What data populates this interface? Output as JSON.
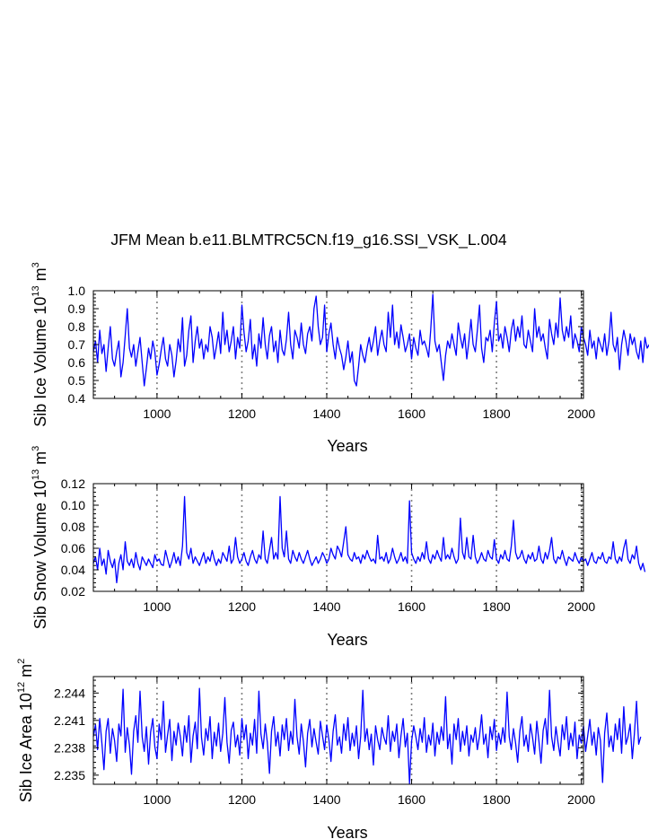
{
  "title": "JFM Mean b.e11.BLMTRC5CN.f19_g16.SSI_VSK_L.004",
  "line_color": "#0000ff",
  "ref_line_color": "#808080",
  "chart_data": [
    {
      "type": "line",
      "id": "ice_volume",
      "ylabel_main": "Sib Ice Volume 10",
      "ylabel_sup1": "13",
      "ylabel_unit": " m",
      "ylabel_sup2": "3",
      "xlabel": "Years",
      "xlim": [
        850,
        2005
      ],
      "ylim": [
        0.4,
        1.0
      ],
      "xticks": [
        1000,
        1200,
        1400,
        1600,
        1800,
        2000
      ],
      "xtick_labels": [
        "1000",
        "1200",
        "1400",
        "1600",
        "1800",
        "2000"
      ],
      "yticks": [
        0.4,
        0.5,
        0.6,
        0.7,
        0.8,
        0.9,
        1.0
      ],
      "ytick_labels": [
        "0.4",
        "0.5",
        "0.6",
        "0.7",
        "0.8",
        "0.9",
        "1.0"
      ],
      "ref_lines": [
        1000,
        1200,
        1400,
        1600,
        1800,
        2000
      ],
      "series_step": 5,
      "series": [
        0.66,
        0.72,
        0.6,
        0.78,
        0.65,
        0.7,
        0.55,
        0.68,
        0.8,
        0.62,
        0.58,
        0.66,
        0.72,
        0.52,
        0.6,
        0.75,
        0.9,
        0.68,
        0.63,
        0.7,
        0.58,
        0.66,
        0.74,
        0.6,
        0.47,
        0.57,
        0.68,
        0.62,
        0.72,
        0.66,
        0.53,
        0.59,
        0.67,
        0.74,
        0.62,
        0.58,
        0.7,
        0.64,
        0.52,
        0.61,
        0.73,
        0.66,
        0.85,
        0.58,
        0.64,
        0.78,
        0.86,
        0.6,
        0.72,
        0.8,
        0.68,
        0.73,
        0.62,
        0.7,
        0.66,
        0.8,
        0.74,
        0.62,
        0.69,
        0.77,
        0.65,
        0.88,
        0.7,
        0.78,
        0.66,
        0.72,
        0.8,
        0.62,
        0.74,
        0.68,
        0.92,
        0.77,
        0.66,
        0.72,
        0.84,
        0.62,
        0.7,
        0.58,
        0.76,
        0.68,
        0.85,
        0.7,
        0.62,
        0.75,
        0.8,
        0.66,
        0.72,
        0.6,
        0.78,
        0.67,
        0.64,
        0.73,
        0.88,
        0.7,
        0.62,
        0.78,
        0.74,
        0.68,
        0.82,
        0.7,
        0.65,
        0.76,
        0.8,
        0.72,
        0.9,
        0.97,
        0.8,
        0.7,
        0.74,
        0.92,
        0.66,
        0.76,
        0.82,
        0.7,
        0.62,
        0.74,
        0.68,
        0.64,
        0.56,
        0.63,
        0.72,
        0.6,
        0.66,
        0.5,
        0.47,
        0.58,
        0.7,
        0.64,
        0.6,
        0.68,
        0.74,
        0.66,
        0.72,
        0.8,
        0.64,
        0.72,
        0.78,
        0.7,
        0.66,
        0.88,
        0.74,
        0.92,
        0.7,
        0.77,
        0.68,
        0.81,
        0.74,
        0.66,
        0.7,
        0.76,
        0.62,
        0.74,
        0.68,
        0.64,
        0.78,
        0.7,
        0.72,
        0.68,
        0.63,
        0.78,
        0.98,
        0.72,
        0.66,
        0.7,
        0.6,
        0.5,
        0.64,
        0.72,
        0.68,
        0.76,
        0.7,
        0.64,
        0.82,
        0.74,
        0.68,
        0.76,
        0.62,
        0.72,
        0.84,
        0.7,
        0.66,
        0.78,
        0.92,
        0.68,
        0.6,
        0.74,
        0.72,
        0.78,
        0.66,
        0.82,
        0.94,
        0.72,
        0.76,
        0.68,
        0.8,
        0.74,
        0.66,
        0.78,
        0.84,
        0.72,
        0.8,
        0.74,
        0.86,
        0.7,
        0.68,
        0.78,
        0.72,
        0.66,
        0.9,
        0.74,
        0.8,
        0.72,
        0.76,
        0.68,
        0.62,
        0.84,
        0.76,
        0.7,
        0.82,
        0.74,
        0.96,
        0.78,
        0.72,
        0.8,
        0.74,
        0.86,
        0.68,
        0.76,
        0.72,
        0.66,
        0.8,
        0.74,
        0.7,
        0.64,
        0.78,
        0.68,
        0.72,
        0.62,
        0.74,
        0.7,
        0.66,
        0.76,
        0.64,
        0.72,
        0.88,
        0.7,
        0.66,
        0.74,
        0.56,
        0.7,
        0.78,
        0.72,
        0.64,
        0.76,
        0.7,
        0.74,
        0.66,
        0.62,
        0.72,
        0.6,
        0.74,
        0.68,
        0.7,
        0.6,
        0.66,
        0.74,
        0.62,
        0.58
      ]
    },
    {
      "type": "line",
      "id": "snow_volume",
      "ylabel_main": "Sib Snow Volume 10",
      "ylabel_sup1": "13",
      "ylabel_unit": " m",
      "ylabel_sup2": "3",
      "xlabel": "Years",
      "xlim": [
        850,
        2005
      ],
      "ylim": [
        0.02,
        0.12
      ],
      "xticks": [
        1000,
        1200,
        1400,
        1600,
        1800,
        2000
      ],
      "xtick_labels": [
        "1000",
        "1200",
        "1400",
        "1600",
        "1800",
        "2000"
      ],
      "yticks": [
        0.02,
        0.04,
        0.06,
        0.08,
        0.1,
        0.12
      ],
      "ytick_labels": [
        "0.02",
        "0.04",
        "0.06",
        "0.08",
        "0.10",
        "0.12"
      ],
      "ref_lines": [
        1000,
        1200,
        1400,
        1600,
        1800,
        2000
      ],
      "series_step": 5,
      "series": [
        0.046,
        0.052,
        0.04,
        0.06,
        0.044,
        0.05,
        0.036,
        0.058,
        0.048,
        0.042,
        0.05,
        0.028,
        0.046,
        0.054,
        0.04,
        0.066,
        0.048,
        0.044,
        0.05,
        0.042,
        0.056,
        0.046,
        0.04,
        0.052,
        0.048,
        0.044,
        0.05,
        0.046,
        0.042,
        0.054,
        0.048,
        0.05,
        0.045,
        0.044,
        0.058,
        0.05,
        0.042,
        0.048,
        0.056,
        0.046,
        0.052,
        0.044,
        0.062,
        0.108,
        0.056,
        0.05,
        0.06,
        0.046,
        0.052,
        0.048,
        0.044,
        0.05,
        0.056,
        0.046,
        0.052,
        0.048,
        0.058,
        0.05,
        0.044,
        0.05,
        0.046,
        0.056,
        0.052,
        0.048,
        0.062,
        0.046,
        0.05,
        0.07,
        0.052,
        0.046,
        0.05,
        0.056,
        0.048,
        0.044,
        0.052,
        0.058,
        0.05,
        0.046,
        0.054,
        0.05,
        0.076,
        0.05,
        0.046,
        0.058,
        0.07,
        0.05,
        0.056,
        0.05,
        0.108,
        0.06,
        0.052,
        0.076,
        0.05,
        0.046,
        0.058,
        0.052,
        0.048,
        0.056,
        0.05,
        0.046,
        0.052,
        0.058,
        0.05,
        0.044,
        0.048,
        0.052,
        0.046,
        0.05,
        0.056,
        0.052,
        0.046,
        0.05,
        0.06,
        0.054,
        0.05,
        0.062,
        0.058,
        0.052,
        0.066,
        0.08,
        0.054,
        0.05,
        0.048,
        0.056,
        0.05,
        0.052,
        0.046,
        0.054,
        0.05,
        0.058,
        0.052,
        0.048,
        0.05,
        0.046,
        0.072,
        0.05,
        0.052,
        0.048,
        0.056,
        0.046,
        0.05,
        0.06,
        0.052,
        0.046,
        0.05,
        0.056,
        0.048,
        0.052,
        0.046,
        0.104,
        0.056,
        0.05,
        0.046,
        0.052,
        0.048,
        0.056,
        0.05,
        0.066,
        0.05,
        0.046,
        0.054,
        0.05,
        0.058,
        0.052,
        0.048,
        0.07,
        0.05,
        0.054,
        0.05,
        0.06,
        0.052,
        0.046,
        0.05,
        0.088,
        0.056,
        0.05,
        0.07,
        0.052,
        0.05,
        0.072,
        0.052,
        0.046,
        0.05,
        0.056,
        0.05,
        0.048,
        0.058,
        0.052,
        0.05,
        0.068,
        0.05,
        0.046,
        0.054,
        0.05,
        0.058,
        0.05,
        0.048,
        0.062,
        0.086,
        0.056,
        0.05,
        0.052,
        0.058,
        0.05,
        0.046,
        0.054,
        0.05,
        0.056,
        0.048,
        0.05,
        0.062,
        0.05,
        0.046,
        0.056,
        0.05,
        0.058,
        0.07,
        0.05,
        0.046,
        0.052,
        0.05,
        0.058,
        0.05,
        0.044,
        0.052,
        0.05,
        0.048,
        0.056,
        0.05,
        0.046,
        0.052,
        0.048,
        0.05,
        0.044,
        0.05,
        0.056,
        0.048,
        0.046,
        0.052,
        0.05,
        0.056,
        0.048,
        0.046,
        0.052,
        0.05,
        0.066,
        0.05,
        0.046,
        0.052,
        0.048,
        0.06,
        0.068,
        0.05,
        0.046,
        0.054,
        0.05,
        0.062,
        0.046,
        0.04,
        0.046,
        0.038
      ]
    },
    {
      "type": "line",
      "id": "ice_area",
      "ylabel_main": "Sib Ice Area 10",
      "ylabel_sup1": "12",
      "ylabel_unit": " m",
      "ylabel_sup2": "2",
      "xlabel": "Years",
      "xlim": [
        850,
        2005
      ],
      "ylim": [
        2.234,
        2.2458
      ],
      "xticks": [
        1000,
        1200,
        1400,
        1600,
        1800,
        2000
      ],
      "xtick_labels": [
        "1000",
        "1200",
        "1400",
        "1600",
        "1800",
        "2000"
      ],
      "yticks": [
        2.235,
        2.238,
        2.241,
        2.244
      ],
      "ytick_labels": [
        "2.235",
        "2.238",
        "2.241",
        "2.244"
      ],
      "ref_lines": [
        1000,
        1200,
        1400,
        1600,
        1800,
        2000
      ],
      "series_step": 5,
      "series": [
        2.2392,
        2.2405,
        2.2378,
        2.2412,
        2.2385,
        2.2356,
        2.2398,
        2.2412,
        2.2374,
        2.2401,
        2.2388,
        2.2365,
        2.2406,
        2.2393,
        2.2444,
        2.2375,
        2.2402,
        2.2383,
        2.2351,
        2.2398,
        2.2415,
        2.2386,
        2.2442,
        2.2392,
        2.2376,
        2.2403,
        2.2362,
        2.2397,
        2.2412,
        2.2381,
        2.2368,
        2.2406,
        2.2389,
        2.2431,
        2.2375,
        2.2394,
        2.2411,
        2.2366,
        2.2398,
        2.2383,
        2.2407,
        2.2392,
        2.2371,
        2.2404,
        2.2386,
        2.2415,
        2.2364,
        2.2393,
        2.2408,
        2.2379,
        2.2445,
        2.2391,
        2.2372,
        2.2401,
        2.2388,
        2.2414,
        2.2368,
        2.2397,
        2.2382,
        2.2407,
        2.2376,
        2.2396,
        2.2435,
        2.2386,
        2.2363,
        2.2399,
        2.2408,
        2.2381,
        2.2394,
        2.2372,
        2.2412,
        2.2389,
        2.2405,
        2.2368,
        2.2396,
        2.2383,
        2.2411,
        2.2374,
        2.2442,
        2.2395,
        2.2379,
        2.2406,
        2.2386,
        2.2352,
        2.2398,
        2.2414,
        2.2382,
        2.2397,
        2.2371,
        2.2405,
        2.2389,
        2.2412,
        2.2377,
        2.2398,
        2.2384,
        2.2433,
        2.2392,
        2.2373,
        2.2406,
        2.2387,
        2.2359,
        2.2396,
        2.2411,
        2.2381,
        2.2401,
        2.2386,
        2.2373,
        2.2409,
        2.2393,
        2.2378,
        2.2405,
        2.2389,
        2.2365,
        2.2398,
        2.2416,
        2.2383,
        2.2392,
        2.2374,
        2.2406,
        2.2388,
        2.2413,
        2.2377,
        2.2396,
        2.2382,
        2.2404,
        2.2368,
        2.2392,
        2.2443,
        2.2387,
        2.2401,
        2.2378,
        2.2395,
        2.2361,
        2.2404,
        2.2389,
        2.2378,
        2.2402,
        2.2391,
        2.2384,
        2.2415,
        2.2376,
        2.2398,
        2.2387,
        2.2406,
        2.2369,
        2.2393,
        2.2412,
        2.2381,
        2.2396,
        2.2341,
        2.2387,
        2.2404,
        2.2392,
        2.2378,
        2.2401,
        2.2386,
        2.2413,
        2.2375,
        2.2394,
        2.2383,
        2.2407,
        2.2371,
        2.2397,
        2.2384,
        2.2403,
        2.2388,
        2.2436,
        2.2379,
        2.2395,
        2.2362,
        2.2406,
        2.2389,
        2.2412,
        2.2376,
        2.2398,
        2.2383,
        2.2404,
        2.2371,
        2.2394,
        2.2386,
        2.2402,
        2.2378,
        2.2393,
        2.2416,
        2.2384,
        2.2395,
        2.2369,
        2.2403,
        2.2389,
        2.2411,
        2.2377,
        2.2396,
        2.2384,
        2.2402,
        2.2386,
        2.2441,
        2.2392,
        2.2378,
        2.2401,
        2.2385,
        2.2364,
        2.2398,
        2.2414,
        2.2382,
        2.2394,
        2.2376,
        2.2406,
        2.2391,
        2.2373,
        2.2409,
        2.2387,
        2.2363,
        2.2399,
        2.2412,
        2.2384,
        2.2443,
        2.2392,
        2.2377,
        2.2403,
        2.2386,
        2.2371,
        2.2405,
        2.2389,
        2.2414,
        2.2378,
        2.2396,
        2.2382,
        2.2408,
        2.2368,
        2.2394,
        2.2385,
        2.2404,
        2.2376,
        2.2393,
        2.2411,
        2.2383,
        2.2397,
        2.2372,
        2.2402,
        2.2388,
        2.2342,
        2.2396,
        2.2418,
        2.2381,
        2.2393,
        2.2376,
        2.2406,
        2.2389,
        2.2412,
        2.2374,
        2.2425,
        2.2384,
        2.2392,
        2.2406,
        2.2368,
        2.2395,
        2.2431,
        2.2384,
        2.2392
      ]
    }
  ]
}
